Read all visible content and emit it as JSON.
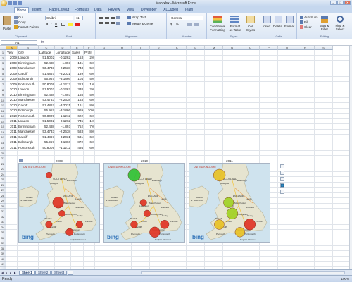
{
  "window": {
    "title": "Map.xlsx - Microsoft Excel",
    "controls": [
      "–",
      "□",
      "✕"
    ]
  },
  "ribbon": {
    "tabs": [
      "Home",
      "Insert",
      "Page Layout",
      "Formulas",
      "Data",
      "Review",
      "View",
      "Developer",
      "XLCubed",
      "Team"
    ],
    "active_tab": "Home",
    "clipboard": {
      "paste": "Paste",
      "cut": "Cut",
      "copy": "Copy",
      "format_painter": "Format Painter",
      "label": "Clipboard"
    },
    "font": {
      "name": "Calibri",
      "size": "11",
      "bold": "B",
      "italic": "I",
      "underline": "U",
      "label": "Font"
    },
    "alignment": {
      "wrap": "Wrap Text",
      "merge": "Merge & Center",
      "label": "Alignment"
    },
    "number": {
      "format": "General",
      "currency": "$",
      "percent": "%",
      "comma": ",",
      "label": "Number"
    },
    "styles": {
      "conditional": "Conditional Formatting",
      "table": "Format as Table",
      "cell_styles": "Cell Styles",
      "label": "Styles"
    },
    "cells": {
      "insert": "Insert",
      "delete": "Delete",
      "format": "Format",
      "label": "Cells"
    },
    "editing": {
      "autosum": "AutoSum",
      "fill": "Fill",
      "clear": "Clear",
      "sort": "Sort & Filter",
      "find": "Find & Select",
      "label": "Editing"
    }
  },
  "formula_bar": {
    "name_box": "A1",
    "fx": "fx",
    "formula": ""
  },
  "columns": [
    "A",
    "B",
    "C",
    "D",
    "E",
    "F",
    "G",
    "H",
    "I",
    "J",
    "K",
    "L",
    "M",
    "N",
    "O",
    "P",
    "Q",
    "R",
    "S"
  ],
  "header_row": [
    "Year",
    "City",
    "Latitude",
    "Longitude",
    "Sales",
    "Profit"
  ],
  "rows": [
    [
      "2009",
      "London",
      "51.5002",
      "-0.1262",
      "153",
      "2%"
    ],
    [
      "2009",
      "Birmingham",
      "52.488",
      "-1.893",
      "131",
      "6%"
    ],
    [
      "2009",
      "Manchester",
      "53.4733",
      "-2.2638",
      "743",
      "5%"
    ],
    [
      "2009",
      "Cardiff",
      "51.4867",
      "-3.2031",
      "139",
      "6%"
    ],
    [
      "2009",
      "Edinburgh",
      "55.957",
      "-3.1866",
      "104",
      "5%"
    ],
    [
      "2009",
      "Portsmouth",
      "50.8009",
      "-1.1212",
      "213",
      "1%"
    ],
    [
      "2010",
      "London",
      "51.5002",
      "-0.1262",
      "338",
      "2%"
    ],
    [
      "2010",
      "Birmingham",
      "52.488",
      "-1.893",
      "158",
      "5%"
    ],
    [
      "2010",
      "Manchester",
      "53.4733",
      "-2.2638",
      "153",
      "6%"
    ],
    [
      "2010",
      "Cardiff",
      "51.4867",
      "-3.2031",
      "161",
      "8%"
    ],
    [
      "2010",
      "Edinburgh",
      "55.957",
      "-3.1866",
      "969",
      "10%"
    ],
    [
      "2010",
      "Portsmouth",
      "50.8009",
      "-1.1212",
      "622",
      "6%"
    ],
    [
      "2011",
      "London",
      "51.5002",
      "-0.1262",
      "745",
      "1%"
    ],
    [
      "2011",
      "Birmingham",
      "52.488",
      "-1.893",
      "752",
      "7%"
    ],
    [
      "2011",
      "Manchester",
      "53.4733",
      "-2.2638",
      "583",
      "8%"
    ],
    [
      "2011",
      "Cardiff",
      "51.4867",
      "-3.2031",
      "531",
      "6%"
    ],
    [
      "2011",
      "Edinburgh",
      "55.957",
      "-3.1866",
      "872",
      "6%"
    ],
    [
      "2011",
      "Portsmouth",
      "50.8009",
      "-1.1212",
      "494",
      "6%"
    ]
  ],
  "maps": [
    {
      "year": "2009",
      "labels": [
        "UNITED KINGDOM",
        "SCOTLAND",
        "Glasgow",
        "Edinburgh",
        "Belfast",
        "N. IRELAND",
        "ENGLAND",
        "Leeds",
        "Manchester",
        "Sheffield",
        "Liverpool",
        "Birmingham",
        "Derby",
        "WALES",
        "Cardiff",
        "Bristol",
        "London",
        "Southampton",
        "Portsmouth",
        "Plymouth",
        "English Channel"
      ],
      "brand": "bing",
      "bubbles": [
        {
          "city": "Edinburgh",
          "sales": 104,
          "profit": "5%",
          "color": "#e03020"
        },
        {
          "city": "Manchester",
          "sales": 743,
          "profit": "5%",
          "color": "#e03020"
        },
        {
          "city": "Birmingham",
          "sales": 131,
          "profit": "6%",
          "color": "#e03020"
        },
        {
          "city": "Cardiff",
          "sales": 139,
          "profit": "6%",
          "color": "#e03020"
        },
        {
          "city": "London",
          "sales": 153,
          "profit": "2%",
          "color": "#e03020"
        },
        {
          "city": "Portsmouth",
          "sales": 213,
          "profit": "1%",
          "color": "#e03020"
        }
      ]
    },
    {
      "year": "2010",
      "labels": [
        "UNITED KINGDOM",
        "SCOTLAND",
        "Glasgow",
        "Edinburgh",
        "Belfast",
        "N. IRELAND",
        "ENGLAND",
        "Leeds",
        "Manchester",
        "Sheffield",
        "Liverpool",
        "Birmingham",
        "Derby",
        "WALES",
        "Cardiff",
        "Bristol",
        "London",
        "Southampton",
        "Portsmouth",
        "Plymouth",
        "English Channel"
      ],
      "brand": "bing",
      "bubbles": [
        {
          "city": "Edinburgh",
          "sales": 969,
          "profit": "10%",
          "color": "#2ec02e"
        },
        {
          "city": "Manchester",
          "sales": 153,
          "profit": "6%",
          "color": "#e03020"
        },
        {
          "city": "Birmingham",
          "sales": 158,
          "profit": "5%",
          "color": "#e03020"
        },
        {
          "city": "Cardiff",
          "sales": 161,
          "profit": "8%",
          "color": "#e03020"
        },
        {
          "city": "London",
          "sales": 338,
          "profit": "2%",
          "color": "#e03020"
        },
        {
          "city": "Portsmouth",
          "sales": 622,
          "profit": "6%",
          "color": "#e03020"
        }
      ]
    },
    {
      "year": "2011",
      "labels": [
        "UNITED KINGDOM",
        "SCOTLAND",
        "Glasgow",
        "Edinburgh",
        "Belfast",
        "N. IRELAND",
        "ENGLAND",
        "Leeds",
        "Manchester",
        "Sheffield",
        "Liverpool",
        "Birmingham",
        "Derby",
        "WALES",
        "Cardiff",
        "Bristol",
        "London",
        "Southampton",
        "Portsmouth",
        "Plymouth",
        "English Channel"
      ],
      "brand": "bing",
      "bubbles": [
        {
          "city": "Edinburgh",
          "sales": 872,
          "profit": "6%",
          "color": "#e8c020"
        },
        {
          "city": "Manchester",
          "sales": 583,
          "profit": "8%",
          "color": "#a0d020"
        },
        {
          "city": "Birmingham",
          "sales": 752,
          "profit": "7%",
          "color": "#a0d020"
        },
        {
          "city": "Cardiff",
          "sales": 531,
          "profit": "6%",
          "color": "#e8c020"
        },
        {
          "city": "London",
          "sales": 745,
          "profit": "1%",
          "color": "#e03020"
        },
        {
          "city": "Portsmouth",
          "sales": 494,
          "profit": "6%",
          "color": "#e8c020"
        }
      ]
    }
  ],
  "sheets": [
    "Sheet1",
    "Sheet2",
    "Sheet3"
  ],
  "active_sheet": "Sheet1",
  "status": {
    "ready": "Ready",
    "zoom": "100%"
  },
  "colors": {
    "accent": "#1d3a6b",
    "ribbon": "#dbe6f4",
    "land": "#e6e4d0",
    "sea": "#cfe3ee"
  }
}
